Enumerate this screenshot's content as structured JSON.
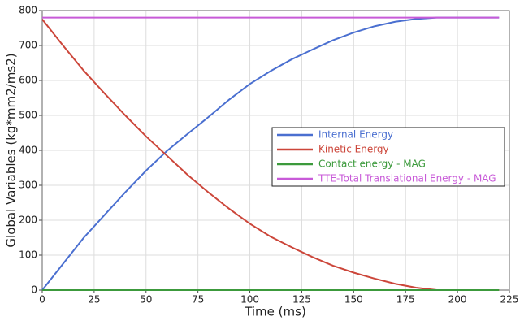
{
  "chart_data": {
    "type": "line",
    "xlabel": "Time (ms)",
    "ylabel": "Global Variables (kg*mm2/ms2)",
    "x": [
      0,
      10,
      20,
      30,
      40,
      50,
      60,
      70,
      80,
      90,
      100,
      110,
      120,
      130,
      140,
      150,
      160,
      170,
      180,
      190,
      200,
      210,
      220
    ],
    "series": [
      {
        "name": "Internal Energy",
        "color": "#4a6fd0",
        "values": [
          0,
          75,
          150,
          215,
          280,
          342,
          398,
          447,
          495,
          545,
          590,
          627,
          660,
          688,
          715,
          737,
          755,
          768,
          776,
          780,
          780,
          780,
          780
        ]
      },
      {
        "name": "Kinetic Energy",
        "color": "#cc463a",
        "values": [
          775,
          700,
          628,
          563,
          500,
          440,
          385,
          330,
          280,
          233,
          190,
          153,
          123,
          95,
          70,
          50,
          33,
          18,
          7,
          0,
          0,
          0,
          0
        ]
      },
      {
        "name": "Contact energy - MAG",
        "color": "#3c9a3c",
        "values": [
          0,
          0,
          0,
          0,
          0,
          0,
          0,
          0,
          0,
          0,
          0,
          0,
          0,
          0,
          0,
          0,
          0,
          0,
          0,
          0,
          0,
          0,
          0
        ]
      },
      {
        "name": "TTE-Total Translational Energy - MAG",
        "color": "#c85ad8",
        "values": [
          780,
          780,
          780,
          780,
          780,
          780,
          780,
          780,
          780,
          780,
          780,
          780,
          780,
          780,
          780,
          780,
          780,
          780,
          780,
          780,
          780,
          780,
          780
        ]
      }
    ],
    "xlim": [
      0,
      225
    ],
    "xticks": [
      0,
      25,
      50,
      75,
      100,
      125,
      150,
      175,
      200,
      225
    ],
    "ylim": [
      0,
      800
    ],
    "yticks": [
      0,
      100,
      200,
      300,
      400,
      500,
      600,
      700,
      800
    ],
    "grid": true
  }
}
